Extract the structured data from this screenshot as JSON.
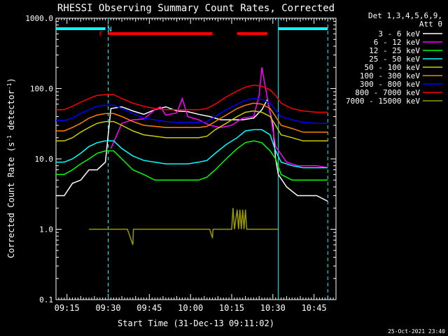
{
  "chart_data": {
    "type": "line",
    "title": "RHESSI Observing Summary Count Rates, Corrected",
    "xlabel": "Start Time (31-Dec-13 09:11:02)",
    "ylabel_main": "Corrected Count Rate (s",
    "ylabel_sup1": "-1",
    "ylabel_mid": " detector",
    "ylabel_sup2": "-1",
    "ylabel_end": ")",
    "yscale": "log",
    "ylim": [
      0.1,
      1000
    ],
    "xlim_min": [
      0,
      102
    ],
    "y_ticks": [
      {
        "value": 0.1,
        "label": "0.1"
      },
      {
        "value": 1,
        "label": "1.0"
      },
      {
        "value": 10,
        "label": "10.0"
      },
      {
        "value": 100,
        "label": "100.0"
      },
      {
        "value": 1000,
        "label": "1000.0"
      }
    ],
    "x_ticks": [
      {
        "minute": 4,
        "label": "09:15"
      },
      {
        "minute": 19,
        "label": "09:30"
      },
      {
        "minute": 34,
        "label": "09:45"
      },
      {
        "minute": 49,
        "label": "10:00"
      },
      {
        "minute": 64,
        "label": "10:15"
      },
      {
        "minute": 79,
        "label": "10:30"
      },
      {
        "minute": 94,
        "label": "10:45"
      }
    ],
    "legend": {
      "header": "Det 1,3,4,5,6,9,",
      "header2": "Att 0",
      "placement": "right"
    },
    "timestamp": "25-Oct-2021 23:40",
    "flags": [
      {
        "label": "N",
        "color": "#00ffff",
        "segments": [
          [
            0,
            18
          ],
          [
            81,
            99
          ]
        ]
      },
      {
        "label": "F",
        "color": "#ff0000",
        "segments": [
          [
            19,
            57
          ],
          [
            66,
            77
          ]
        ]
      }
    ],
    "vlines": [
      {
        "minute": 19,
        "dashed": true
      },
      {
        "minute": 81,
        "dashed": false
      },
      {
        "minute": 99,
        "dashed": true
      }
    ],
    "series": [
      {
        "name": "3 - 6 keV",
        "color": "#ffffff",
        "points": [
          [
            0,
            3
          ],
          [
            3,
            3
          ],
          [
            6,
            4.5
          ],
          [
            9,
            5
          ],
          [
            12,
            7
          ],
          [
            15,
            7
          ],
          [
            18,
            9
          ],
          [
            20,
            52
          ],
          [
            24,
            55
          ],
          [
            28,
            48
          ],
          [
            32,
            43
          ],
          [
            36,
            50
          ],
          [
            40,
            55
          ],
          [
            44,
            48
          ],
          [
            48,
            47
          ],
          [
            52,
            43
          ],
          [
            56,
            40
          ],
          [
            60,
            36
          ],
          [
            64,
            36
          ],
          [
            68,
            36
          ],
          [
            72,
            38
          ],
          [
            75,
            50
          ],
          [
            77,
            70
          ],
          [
            79,
            30
          ],
          [
            80,
            10
          ],
          [
            81,
            6
          ],
          [
            84,
            4
          ],
          [
            88,
            3
          ],
          [
            92,
            3
          ],
          [
            95,
            3
          ],
          [
            99,
            2.5
          ]
        ]
      },
      {
        "name": "6 - 12 keV",
        "color": "#ff00ff",
        "points": [
          [
            20,
            14
          ],
          [
            24,
            32
          ],
          [
            28,
            36
          ],
          [
            32,
            37
          ],
          [
            36,
            50
          ],
          [
            38,
            55
          ],
          [
            40,
            42
          ],
          [
            44,
            45
          ],
          [
            46,
            72
          ],
          [
            48,
            40
          ],
          [
            52,
            36
          ],
          [
            56,
            30
          ],
          [
            60,
            28
          ],
          [
            64,
            30
          ],
          [
            68,
            38
          ],
          [
            72,
            40
          ],
          [
            74,
            80
          ],
          [
            75,
            200
          ],
          [
            76,
            120
          ],
          [
            78,
            45
          ],
          [
            80,
            15
          ],
          [
            84,
            9
          ],
          [
            88,
            8
          ],
          [
            92,
            8
          ],
          [
            95,
            8
          ],
          [
            99,
            7.5
          ]
        ]
      },
      {
        "name": "12 - 25 keV",
        "color": "#00ff00",
        "points": [
          [
            0,
            6
          ],
          [
            3,
            6
          ],
          [
            6,
            7
          ],
          [
            9,
            8.5
          ],
          [
            12,
            10
          ],
          [
            15,
            12
          ],
          [
            18,
            13
          ],
          [
            21,
            13
          ],
          [
            24,
            10
          ],
          [
            28,
            7
          ],
          [
            32,
            6
          ],
          [
            36,
            5
          ],
          [
            40,
            5
          ],
          [
            44,
            5
          ],
          [
            48,
            5
          ],
          [
            52,
            5
          ],
          [
            55,
            5.5
          ],
          [
            58,
            7
          ],
          [
            62,
            10
          ],
          [
            66,
            14
          ],
          [
            69,
            17
          ],
          [
            72,
            18
          ],
          [
            75,
            17
          ],
          [
            78,
            13
          ],
          [
            80,
            10
          ],
          [
            82,
            6
          ],
          [
            86,
            5
          ],
          [
            90,
            5
          ],
          [
            95,
            5
          ],
          [
            99,
            5
          ]
        ]
      },
      {
        "name": "25 - 50 keV",
        "color": "#00ffff",
        "points": [
          [
            0,
            9
          ],
          [
            3,
            9
          ],
          [
            6,
            10
          ],
          [
            9,
            12
          ],
          [
            12,
            15
          ],
          [
            15,
            17
          ],
          [
            18,
            18
          ],
          [
            21,
            18
          ],
          [
            24,
            14
          ],
          [
            28,
            11
          ],
          [
            32,
            9.5
          ],
          [
            36,
            9
          ],
          [
            40,
            8.5
          ],
          [
            44,
            8.5
          ],
          [
            48,
            8.5
          ],
          [
            52,
            9
          ],
          [
            55,
            9.5
          ],
          [
            58,
            12
          ],
          [
            62,
            16
          ],
          [
            66,
            20
          ],
          [
            69,
            25
          ],
          [
            72,
            26
          ],
          [
            75,
            26
          ],
          [
            78,
            22
          ],
          [
            80,
            13
          ],
          [
            82,
            9
          ],
          [
            86,
            8
          ],
          [
            90,
            7.5
          ],
          [
            95,
            7.5
          ],
          [
            99,
            7.5
          ]
        ]
      },
      {
        "name": "50 - 100 keV",
        "color": "#cccc00",
        "points": [
          [
            0,
            18
          ],
          [
            3,
            18
          ],
          [
            6,
            20
          ],
          [
            9,
            24
          ],
          [
            12,
            28
          ],
          [
            15,
            32
          ],
          [
            18,
            34
          ],
          [
            21,
            34
          ],
          [
            24,
            30
          ],
          [
            28,
            25
          ],
          [
            32,
            22
          ],
          [
            36,
            21
          ],
          [
            40,
            20
          ],
          [
            44,
            20
          ],
          [
            48,
            20
          ],
          [
            52,
            20
          ],
          [
            55,
            21
          ],
          [
            58,
            26
          ],
          [
            62,
            32
          ],
          [
            66,
            40
          ],
          [
            69,
            46
          ],
          [
            72,
            48
          ],
          [
            75,
            46
          ],
          [
            78,
            40
          ],
          [
            80,
            30
          ],
          [
            82,
            22
          ],
          [
            86,
            20
          ],
          [
            90,
            18
          ],
          [
            95,
            18
          ],
          [
            99,
            18
          ]
        ]
      },
      {
        "name": "100 - 300 keV",
        "color": "#ff8000",
        "points": [
          [
            0,
            25
          ],
          [
            3,
            25
          ],
          [
            6,
            28
          ],
          [
            9,
            32
          ],
          [
            12,
            38
          ],
          [
            15,
            42
          ],
          [
            18,
            44
          ],
          [
            21,
            44
          ],
          [
            24,
            40
          ],
          [
            28,
            34
          ],
          [
            32,
            30
          ],
          [
            36,
            29
          ],
          [
            40,
            28
          ],
          [
            44,
            28
          ],
          [
            48,
            28
          ],
          [
            52,
            28
          ],
          [
            55,
            29
          ],
          [
            58,
            34
          ],
          [
            62,
            42
          ],
          [
            66,
            52
          ],
          [
            69,
            58
          ],
          [
            72,
            62
          ],
          [
            75,
            60
          ],
          [
            78,
            52
          ],
          [
            80,
            40
          ],
          [
            82,
            30
          ],
          [
            86,
            27
          ],
          [
            90,
            24
          ],
          [
            95,
            24
          ],
          [
            99,
            24
          ]
        ]
      },
      {
        "name": "300 - 800 keV",
        "color": "#0000ff",
        "points": [
          [
            0,
            35
          ],
          [
            3,
            35
          ],
          [
            6,
            38
          ],
          [
            9,
            44
          ],
          [
            12,
            50
          ],
          [
            15,
            56
          ],
          [
            18,
            58
          ],
          [
            21,
            58
          ],
          [
            24,
            52
          ],
          [
            28,
            44
          ],
          [
            32,
            38
          ],
          [
            36,
            36
          ],
          [
            40,
            34
          ],
          [
            44,
            33
          ],
          [
            48,
            33
          ],
          [
            52,
            33
          ],
          [
            55,
            34
          ],
          [
            58,
            40
          ],
          [
            62,
            50
          ],
          [
            66,
            60
          ],
          [
            69,
            68
          ],
          [
            72,
            72
          ],
          [
            75,
            70
          ],
          [
            78,
            62
          ],
          [
            80,
            50
          ],
          [
            82,
            40
          ],
          [
            86,
            36
          ],
          [
            90,
            33
          ],
          [
            95,
            32
          ],
          [
            99,
            32
          ]
        ]
      },
      {
        "name": "800 - 7000 keV",
        "color": "#ff0000",
        "points": [
          [
            0,
            50
          ],
          [
            3,
            50
          ],
          [
            6,
            56
          ],
          [
            9,
            64
          ],
          [
            12,
            72
          ],
          [
            15,
            80
          ],
          [
            18,
            82
          ],
          [
            21,
            82
          ],
          [
            24,
            72
          ],
          [
            28,
            62
          ],
          [
            32,
            56
          ],
          [
            36,
            52
          ],
          [
            40,
            50
          ],
          [
            44,
            50
          ],
          [
            48,
            50
          ],
          [
            52,
            50
          ],
          [
            55,
            52
          ],
          [
            58,
            60
          ],
          [
            62,
            76
          ],
          [
            66,
            92
          ],
          [
            69,
            105
          ],
          [
            72,
            112
          ],
          [
            75,
            108
          ],
          [
            78,
            96
          ],
          [
            80,
            80
          ],
          [
            82,
            62
          ],
          [
            86,
            52
          ],
          [
            90,
            48
          ],
          [
            95,
            46
          ],
          [
            99,
            46
          ]
        ]
      },
      {
        "name": "7000 - 15000 keV",
        "color": "#999900",
        "points": [
          [
            12,
            1
          ],
          [
            16,
            1
          ],
          [
            20,
            1
          ],
          [
            26,
            1
          ],
          [
            28,
            0.6
          ],
          [
            28.2,
            1
          ],
          [
            30,
            1
          ],
          [
            34,
            1
          ],
          [
            38,
            1
          ],
          [
            40,
            1
          ],
          [
            56,
            1
          ],
          [
            57,
            0.75
          ],
          [
            57.2,
            1
          ],
          [
            60,
            1
          ],
          [
            62,
            1
          ],
          [
            64,
            1
          ],
          [
            64.5,
            2
          ],
          [
            65,
            1
          ],
          [
            66,
            1.9
          ],
          [
            66.5,
            1
          ],
          [
            67,
            1.9
          ],
          [
            67.5,
            1
          ],
          [
            68,
            1.9
          ],
          [
            68.5,
            1
          ],
          [
            69,
            1.9
          ],
          [
            69.5,
            1
          ],
          [
            70,
            1
          ],
          [
            72,
            1
          ],
          [
            74,
            1
          ],
          [
            78,
            1
          ],
          [
            81,
            1
          ]
        ]
      }
    ]
  }
}
